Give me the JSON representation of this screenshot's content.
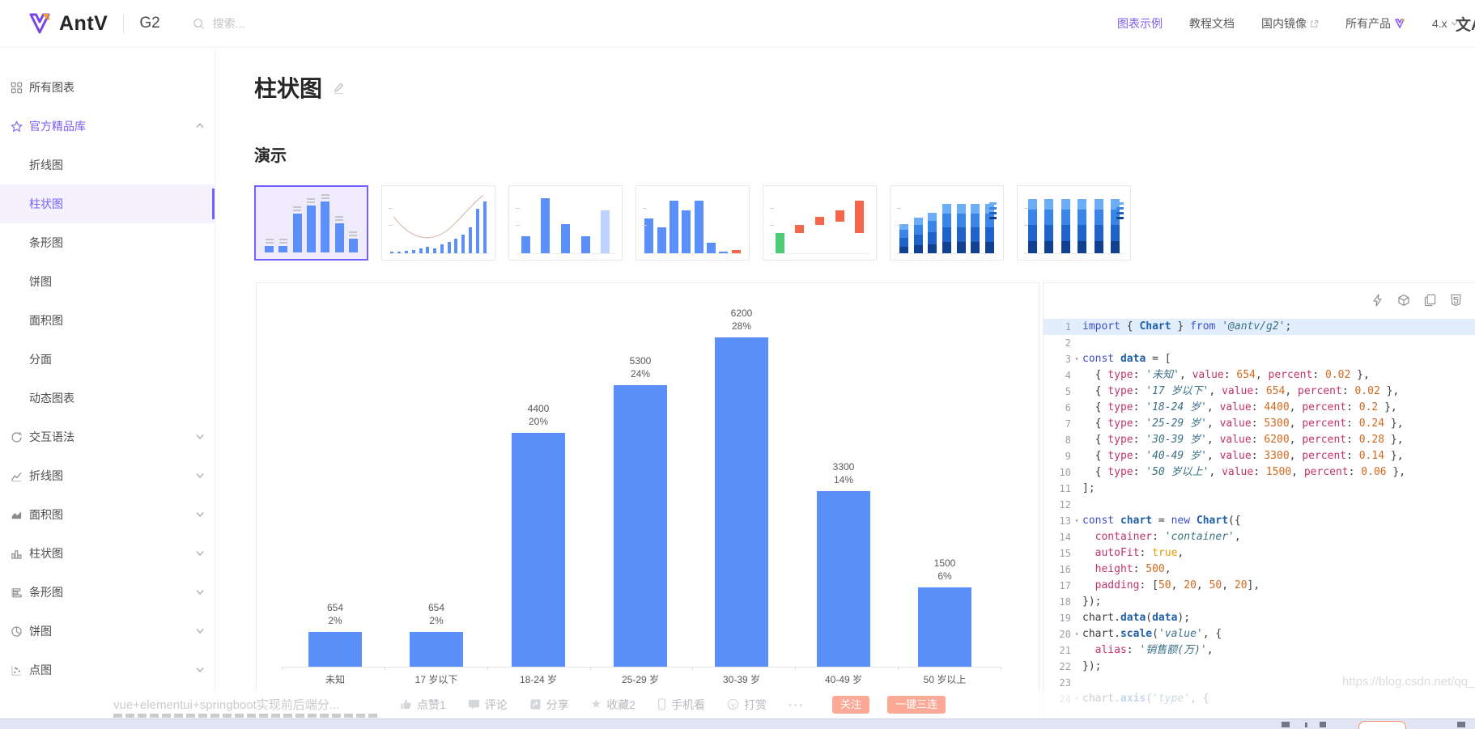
{
  "header": {
    "brand": "AntV",
    "product": "G2",
    "search_placeholder": "搜索...",
    "nav": [
      {
        "label": "图表示例",
        "active": true
      },
      {
        "label": "教程文档"
      },
      {
        "label": "国内镜像",
        "external": true
      },
      {
        "label": "所有产品",
        "logo": true
      },
      {
        "label": "4.x",
        "dropdown": true
      }
    ],
    "lang_toggle": "文A"
  },
  "sidebar": {
    "items": [
      {
        "label": "所有图表",
        "icon": "grid"
      },
      {
        "label": "官方精品库",
        "icon": "star",
        "expanded": true
      },
      {
        "label": "折线图",
        "indent": true
      },
      {
        "label": "柱状图",
        "indent": true,
        "active": true
      },
      {
        "label": "条形图",
        "indent": true
      },
      {
        "label": "饼图",
        "indent": true
      },
      {
        "label": "面积图",
        "indent": true
      },
      {
        "label": "分面",
        "indent": true
      },
      {
        "label": "动态图表",
        "indent": true
      },
      {
        "label": "交互语法",
        "icon": "interaction",
        "collapsed": true
      },
      {
        "label": "折线图",
        "icon": "line-chart",
        "collapsed": true
      },
      {
        "label": "面积图",
        "icon": "area-chart",
        "collapsed": true
      },
      {
        "label": "柱状图",
        "icon": "column-chart",
        "collapsed": true
      },
      {
        "label": "条形图",
        "icon": "bar-chart",
        "collapsed": true
      },
      {
        "label": "饼图",
        "icon": "pie-chart",
        "collapsed": true
      },
      {
        "label": "点图",
        "icon": "dot-chart",
        "collapsed": true
      }
    ]
  },
  "main": {
    "title": "柱状图",
    "section_title": "演示",
    "palette": {
      "blue": "#5B8FF9",
      "lightblue": "#BDD2FD",
      "green": "#4ECB73",
      "red": "#F4664A",
      "none": "transparent"
    },
    "stack_colors": [
      "#10408f",
      "#1f62c9",
      "#3a86e8",
      "#6BAEF5"
    ],
    "thumbnails": [
      {
        "name": "basic-column",
        "selected": true,
        "labels": true,
        "bars": [
          0.11,
          0.11,
          0.68,
          0.83,
          0.9,
          0.52,
          0.24
        ]
      },
      {
        "name": "column-growth-line",
        "thin": true,
        "axis": true,
        "curve": true,
        "bars": [
          0.03,
          0.03,
          0.04,
          0.05,
          0.08,
          0.12,
          0.08,
          0.15,
          0.2,
          0.26,
          0.33,
          0.45,
          0.78,
          0.92
        ]
      },
      {
        "name": "column-mixed",
        "axis": true,
        "bars": [
          0.3,
          0.97,
          0.52,
          0.3,
          {
            "h": 0.76,
            "c": "lightblue"
          }
        ]
      },
      {
        "name": "column-series",
        "axis": true,
        "bars": [
          0.62,
          0.45,
          0.93,
          0.76,
          0.93,
          0.18,
          0.03,
          {
            "h": 0.05,
            "c": "red"
          }
        ]
      },
      {
        "name": "waterfall",
        "axis": true,
        "bars": [
          {
            "h": 0.36,
            "c": "green"
          },
          {
            "h": 0.14,
            "o": 0.36,
            "c": "red"
          },
          {
            "h": 0.14,
            "o": 0.5,
            "c": "red"
          },
          {
            "h": 0.2,
            "o": 0.56,
            "c": "red"
          },
          {
            "h": 0.57,
            "o": 0.36,
            "c": "red"
          }
        ]
      },
      {
        "name": "stacked-column",
        "axis": true,
        "legend": true,
        "bars": [
          {
            "h": 0.52,
            "stacked": true
          },
          {
            "h": 0.62,
            "stacked": true
          },
          {
            "h": 0.72,
            "stacked": true
          },
          {
            "h": 0.88,
            "stacked": true
          },
          {
            "h": 0.88,
            "stacked": true
          },
          {
            "h": 0.88,
            "stacked": true
          },
          {
            "h": 0.88,
            "stacked": true
          }
        ]
      },
      {
        "name": "percent-stacked-column",
        "axis": true,
        "legend": true,
        "bars": [
          {
            "h": 0.95,
            "stacked": true
          },
          {
            "h": 0.95,
            "stacked": true
          },
          {
            "h": 0.95,
            "stacked": true
          },
          {
            "h": 0.95,
            "stacked": true
          },
          {
            "h": 0.95,
            "stacked": true
          },
          {
            "h": 0.95,
            "stacked": true
          }
        ]
      }
    ]
  },
  "chart_data": {
    "type": "bar",
    "categories": [
      "未知",
      "17 岁以下",
      "18-24 岁",
      "25-29 岁",
      "30-39 岁",
      "40-49 岁",
      "50 岁以上"
    ],
    "values": [
      654,
      654,
      4400,
      5300,
      6200,
      3300,
      1500
    ],
    "percent_labels": [
      "2%",
      "2%",
      "20%",
      "24%",
      "28%",
      "14%",
      "6%"
    ],
    "bar_color": "#5B8FF9",
    "value_alias": "销售额(万)",
    "title": "",
    "xlabel": "",
    "ylabel": "",
    "ylim": [
      0,
      6200
    ],
    "grid": false,
    "legend": "none"
  },
  "code_panel": {
    "toolbar_icons": [
      "run",
      "codesandbox",
      "copy",
      "html5"
    ],
    "lines": [
      {
        "n": 1,
        "hl": true,
        "t": [
          [
            "k",
            "import"
          ],
          [
            "t",
            " { "
          ],
          [
            "d",
            "Chart"
          ],
          [
            "t",
            " } "
          ],
          [
            "k",
            "from"
          ],
          [
            "t",
            " "
          ],
          [
            "s",
            "'@antv/g2'"
          ],
          [
            "t",
            ";"
          ]
        ]
      },
      {
        "n": 2,
        "t": []
      },
      {
        "n": 3,
        "fold": true,
        "t": [
          [
            "k",
            "const"
          ],
          [
            "t",
            " "
          ],
          [
            "d",
            "data"
          ],
          [
            "t",
            " = ["
          ]
        ]
      },
      {
        "n": 4,
        "t": [
          [
            "t",
            "  { "
          ],
          [
            "p",
            "type"
          ],
          [
            "t",
            ": "
          ],
          [
            "s",
            "'未知'"
          ],
          [
            "t",
            ", "
          ],
          [
            "p",
            "value"
          ],
          [
            "t",
            ": "
          ],
          [
            "m",
            "654"
          ],
          [
            "t",
            ", "
          ],
          [
            "p",
            "percent"
          ],
          [
            "t",
            ": "
          ],
          [
            "m",
            "0.02"
          ],
          [
            "t",
            " },"
          ]
        ]
      },
      {
        "n": 5,
        "t": [
          [
            "t",
            "  { "
          ],
          [
            "p",
            "type"
          ],
          [
            "t",
            ": "
          ],
          [
            "s",
            "'17 岁以下'"
          ],
          [
            "t",
            ", "
          ],
          [
            "p",
            "value"
          ],
          [
            "t",
            ": "
          ],
          [
            "m",
            "654"
          ],
          [
            "t",
            ", "
          ],
          [
            "p",
            "percent"
          ],
          [
            "t",
            ": "
          ],
          [
            "m",
            "0.02"
          ],
          [
            "t",
            " },"
          ]
        ]
      },
      {
        "n": 6,
        "t": [
          [
            "t",
            "  { "
          ],
          [
            "p",
            "type"
          ],
          [
            "t",
            ": "
          ],
          [
            "s",
            "'18-24 岁'"
          ],
          [
            "t",
            ", "
          ],
          [
            "p",
            "value"
          ],
          [
            "t",
            ": "
          ],
          [
            "m",
            "4400"
          ],
          [
            "t",
            ", "
          ],
          [
            "p",
            "percent"
          ],
          [
            "t",
            ": "
          ],
          [
            "m",
            "0.2"
          ],
          [
            "t",
            " },"
          ]
        ]
      },
      {
        "n": 7,
        "t": [
          [
            "t",
            "  { "
          ],
          [
            "p",
            "type"
          ],
          [
            "t",
            ": "
          ],
          [
            "s",
            "'25-29 岁'"
          ],
          [
            "t",
            ", "
          ],
          [
            "p",
            "value"
          ],
          [
            "t",
            ": "
          ],
          [
            "m",
            "5300"
          ],
          [
            "t",
            ", "
          ],
          [
            "p",
            "percent"
          ],
          [
            "t",
            ": "
          ],
          [
            "m",
            "0.24"
          ],
          [
            "t",
            " },"
          ]
        ]
      },
      {
        "n": 8,
        "t": [
          [
            "t",
            "  { "
          ],
          [
            "p",
            "type"
          ],
          [
            "t",
            ": "
          ],
          [
            "s",
            "'30-39 岁'"
          ],
          [
            "t",
            ", "
          ],
          [
            "p",
            "value"
          ],
          [
            "t",
            ": "
          ],
          [
            "m",
            "6200"
          ],
          [
            "t",
            ", "
          ],
          [
            "p",
            "percent"
          ],
          [
            "t",
            ": "
          ],
          [
            "m",
            "0.28"
          ],
          [
            "t",
            " },"
          ]
        ]
      },
      {
        "n": 9,
        "t": [
          [
            "t",
            "  { "
          ],
          [
            "p",
            "type"
          ],
          [
            "t",
            ": "
          ],
          [
            "s",
            "'40-49 岁'"
          ],
          [
            "t",
            ", "
          ],
          [
            "p",
            "value"
          ],
          [
            "t",
            ": "
          ],
          [
            "m",
            "3300"
          ],
          [
            "t",
            ", "
          ],
          [
            "p",
            "percent"
          ],
          [
            "t",
            ": "
          ],
          [
            "m",
            "0.14"
          ],
          [
            "t",
            " },"
          ]
        ]
      },
      {
        "n": 10,
        "t": [
          [
            "t",
            "  { "
          ],
          [
            "p",
            "type"
          ],
          [
            "t",
            ": "
          ],
          [
            "s",
            "'50 岁以上'"
          ],
          [
            "t",
            ", "
          ],
          [
            "p",
            "value"
          ],
          [
            "t",
            ": "
          ],
          [
            "m",
            "1500"
          ],
          [
            "t",
            ", "
          ],
          [
            "p",
            "percent"
          ],
          [
            "t",
            ": "
          ],
          [
            "m",
            "0.06"
          ],
          [
            "t",
            " },"
          ]
        ]
      },
      {
        "n": 11,
        "t": [
          [
            "t",
            "];"
          ]
        ]
      },
      {
        "n": 12,
        "t": []
      },
      {
        "n": 13,
        "fold": true,
        "t": [
          [
            "k",
            "const"
          ],
          [
            "t",
            " "
          ],
          [
            "d",
            "chart"
          ],
          [
            "t",
            " = "
          ],
          [
            "k",
            "new"
          ],
          [
            "t",
            " "
          ],
          [
            "d",
            "Chart"
          ],
          [
            "t",
            "({"
          ]
        ]
      },
      {
        "n": 14,
        "t": [
          [
            "t",
            "  "
          ],
          [
            "p",
            "container"
          ],
          [
            "t",
            ": "
          ],
          [
            "s",
            "'container'"
          ],
          [
            "t",
            ","
          ]
        ]
      },
      {
        "n": 15,
        "t": [
          [
            "t",
            "  "
          ],
          [
            "p",
            "autoFit"
          ],
          [
            "t",
            ": "
          ],
          [
            "a",
            "true"
          ],
          [
            "t",
            ","
          ]
        ]
      },
      {
        "n": 16,
        "t": [
          [
            "t",
            "  "
          ],
          [
            "p",
            "height"
          ],
          [
            "t",
            ": "
          ],
          [
            "m",
            "500"
          ],
          [
            "t",
            ","
          ]
        ]
      },
      {
        "n": 17,
        "t": [
          [
            "t",
            "  "
          ],
          [
            "p",
            "padding"
          ],
          [
            "t",
            ": ["
          ],
          [
            "m",
            "50"
          ],
          [
            "t",
            ", "
          ],
          [
            "m",
            "20"
          ],
          [
            "t",
            ", "
          ],
          [
            "m",
            "50"
          ],
          [
            "t",
            ", "
          ],
          [
            "m",
            "20"
          ],
          [
            "t",
            "],"
          ]
        ]
      },
      {
        "n": 18,
        "t": [
          [
            "t",
            "});"
          ]
        ]
      },
      {
        "n": 19,
        "t": [
          [
            "t",
            "chart."
          ],
          [
            "d",
            "data"
          ],
          [
            "t",
            "("
          ],
          [
            "d",
            "data"
          ],
          [
            "t",
            ");"
          ]
        ]
      },
      {
        "n": 20,
        "fold": true,
        "t": [
          [
            "t",
            "chart."
          ],
          [
            "d",
            "scale"
          ],
          [
            "t",
            "("
          ],
          [
            "s",
            "'value'"
          ],
          [
            "t",
            ", {"
          ]
        ]
      },
      {
        "n": 21,
        "t": [
          [
            "t",
            "  "
          ],
          [
            "p",
            "alias"
          ],
          [
            "t",
            ": "
          ],
          [
            "s",
            "'销售额(万)'"
          ],
          [
            "t",
            ","
          ]
        ]
      },
      {
        "n": 22,
        "t": [
          [
            "t",
            "});"
          ]
        ]
      },
      {
        "n": 23,
        "t": []
      },
      {
        "n": 24,
        "fold": true,
        "t": [
          [
            "t",
            "chart."
          ],
          [
            "d",
            "axis"
          ],
          [
            "t",
            "("
          ],
          [
            "s",
            "'type'"
          ],
          [
            "t",
            ", {"
          ]
        ]
      }
    ]
  },
  "overlay": {
    "actions": [
      {
        "icon": "thumb-up",
        "label": "点赞1"
      },
      {
        "icon": "comment",
        "label": "评论"
      },
      {
        "icon": "share",
        "label": "分享"
      },
      {
        "icon": "star",
        "label": "收藏2"
      },
      {
        "icon": "phone",
        "label": "手机看"
      },
      {
        "icon": "reward",
        "label": "打赏"
      }
    ],
    "buttons": [
      "关注",
      "一键三连"
    ],
    "watermark_url": "https://blog.csdn.net/qq_",
    "link_title": "vue+elementui+springboot实现前后端分..."
  }
}
